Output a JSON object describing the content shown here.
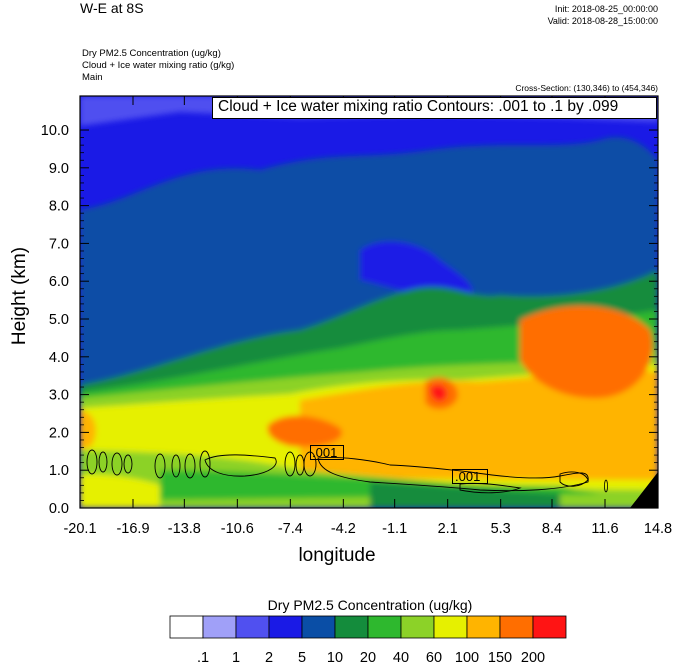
{
  "header": {
    "title": "W-E at 8S",
    "init": "Init: 2018-08-25_00:00:00",
    "valid": "Valid: 2018-08-28_15:00:00",
    "field1": "Dry PM2.5 Concentration   (ug/kg)",
    "field2": "Cloud + Ice water mixing ratio   (g/kg)",
    "field3": "Main",
    "cross_section": "Cross-Section: (130,346) to (454,346)"
  },
  "chart_data": {
    "type": "heatmap",
    "title": "",
    "xlabel": "longitude",
    "ylabel": "Height (km)",
    "x_ticks": [
      "-20.1",
      "-16.9",
      "-13.8",
      "-10.6",
      "-7.4",
      "-4.2",
      "-1.1",
      "2.1",
      "5.3",
      "8.4",
      "11.6",
      "14.8"
    ],
    "y_ticks": [
      "0.0",
      "1.0",
      "2.0",
      "3.0",
      "4.0",
      "5.0",
      "6.0",
      "7.0",
      "8.0",
      "9.0",
      "10.0"
    ],
    "xlim": [
      -20.1,
      14.8
    ],
    "ylim": [
      0.0,
      10.9
    ],
    "contour_annotation": "Cloud + Ice water mixing ratio Contours: .001 to .1 by .099",
    "contour_labels": [
      ".001",
      ".001"
    ],
    "colorbar": {
      "title": "Dry PM2.5 Concentration  (ug/kg)",
      "labels": [
        ".1",
        "1",
        "2",
        "5",
        "10",
        "20",
        "40",
        "60",
        "100",
        "150",
        "200"
      ],
      "colors": [
        "#ffffff",
        "#a0a0f8",
        "#5050f0",
        "#1a1ae6",
        "#0a4ea6",
        "#148c3c",
        "#2eb82e",
        "#8cd228",
        "#e6f000",
        "#ffb400",
        "#ff6e00",
        "#ff1414"
      ]
    }
  }
}
